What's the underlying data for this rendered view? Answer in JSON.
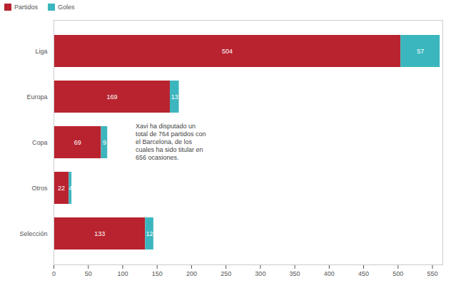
{
  "chart_data": {
    "type": "bar",
    "orientation": "horizontal",
    "stacked": true,
    "data_labels": true,
    "grid": false,
    "legend": "top-left",
    "categories": [
      "Liga",
      "Europa",
      "Copa",
      "Otros",
      "Selección"
    ],
    "series": [
      {
        "name": "Partidos",
        "color": "#b8232f",
        "values": [
          504,
          169,
          69,
          22,
          133
        ]
      },
      {
        "name": "Goles",
        "color": "#3cb6be",
        "values": [
          57,
          13,
          9,
          4,
          12
        ]
      }
    ],
    "xlim": [
      0,
      565
    ],
    "xticks": [
      0,
      50,
      100,
      150,
      200,
      250,
      300,
      350,
      400,
      450,
      500,
      550
    ],
    "annotations": [
      "Xavi ha disputado un total de 764 partidos con el Barcelona, de los cuales ha sido titular en 656 ocasiones."
    ]
  }
}
